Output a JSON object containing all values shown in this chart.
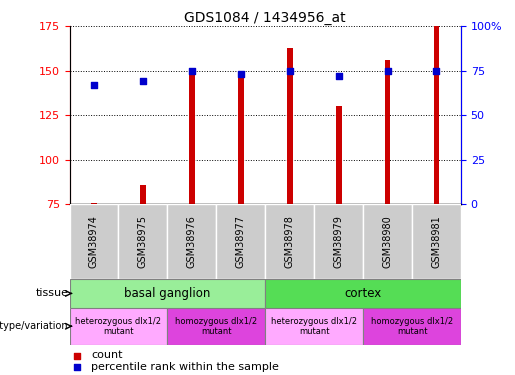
{
  "title": "GDS1084 / 1434956_at",
  "samples": [
    "GSM38974",
    "GSM38975",
    "GSM38976",
    "GSM38977",
    "GSM38978",
    "GSM38979",
    "GSM38980",
    "GSM38981"
  ],
  "bar_values": [
    75.5,
    86,
    150,
    147,
    163,
    130,
    156,
    175
  ],
  "percentile_values": [
    67,
    69,
    75,
    73,
    75,
    72,
    75,
    75
  ],
  "ylim_left": [
    75,
    175
  ],
  "ylim_right": [
    0,
    100
  ],
  "yticks_left": [
    75,
    100,
    125,
    150,
    175
  ],
  "yticks_right": [
    0,
    25,
    50,
    75,
    100
  ],
  "ytick_right_labels": [
    "0",
    "25",
    "50",
    "75",
    "100%"
  ],
  "bar_color": "#cc0000",
  "dot_color": "#0000cc",
  "bar_width": 0.12,
  "tissue_groups": [
    {
      "label": "basal ganglion",
      "start": 0,
      "end": 4,
      "color": "#99ee99"
    },
    {
      "label": "cortex",
      "start": 4,
      "end": 8,
      "color": "#55dd55"
    }
  ],
  "genotype_groups": [
    {
      "label": "heterozygous dlx1/2\nmutant",
      "start": 0,
      "end": 2,
      "color": "#ffaaff"
    },
    {
      "label": "homozygous dlx1/2\nmutant",
      "start": 2,
      "end": 4,
      "color": "#dd44dd"
    },
    {
      "label": "heterozygous dlx1/2\nmutant",
      "start": 4,
      "end": 6,
      "color": "#ffaaff"
    },
    {
      "label": "homozygous dlx1/2\nmutant",
      "start": 6,
      "end": 8,
      "color": "#dd44dd"
    }
  ],
  "tissue_label": "tissue",
  "genotype_label": "genotype/variation",
  "legend_count": "count",
  "legend_percentile": "percentile rank within the sample",
  "sample_box_color": "#cccccc"
}
